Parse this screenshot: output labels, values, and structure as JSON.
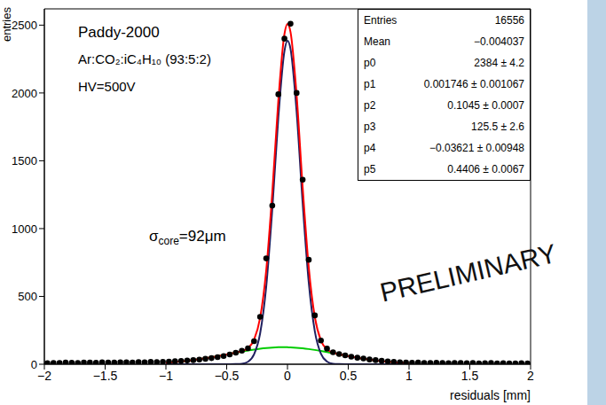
{
  "chart_data": {
    "type": "scatter",
    "x_label": "residuals [mm]",
    "y_label": "entries",
    "annotations": [
      "Paddy-2000",
      "Ar:CO₂:iC₄H₁₀ (93:5:2)",
      "HV=500V"
    ],
    "sigma_label": {
      "symbol": "σ",
      "subscript": "core",
      "text": "=92μm"
    },
    "watermark": "PRELIMINARY",
    "stats": [
      [
        "Entries",
        "16556"
      ],
      [
        "Mean",
        "−0.004037"
      ],
      [
        "p0",
        "2384 ± 4.2"
      ],
      [
        "p1",
        "0.001746 ± 0.001067"
      ],
      [
        "p2",
        "0.1045 ± 0.0007"
      ],
      [
        "p3",
        "125.5 ± 2.6"
      ],
      [
        "p4",
        "−0.03621 ± 0.00948"
      ],
      [
        "p5",
        "0.4406 ± 0.0067"
      ]
    ],
    "x": [
      -1.975,
      -1.925,
      -1.875,
      -1.825,
      -1.775,
      -1.725,
      -1.675,
      -1.625,
      -1.575,
      -1.525,
      -1.475,
      -1.425,
      -1.375,
      -1.325,
      -1.275,
      -1.225,
      -1.175,
      -1.125,
      -1.075,
      -1.025,
      -0.975,
      -0.925,
      -0.875,
      -0.825,
      -0.775,
      -0.725,
      -0.675,
      -0.625,
      -0.575,
      -0.525,
      -0.475,
      -0.425,
      -0.375,
      -0.325,
      -0.275,
      -0.225,
      -0.175,
      -0.125,
      -0.075,
      -0.025,
      0.025,
      0.075,
      0.125,
      0.175,
      0.225,
      0.275,
      0.325,
      0.375,
      0.425,
      0.475,
      0.525,
      0.575,
      0.625,
      0.675,
      0.725,
      0.775,
      0.825,
      0.875,
      0.925,
      0.975,
      1.025,
      1.075,
      1.125,
      1.175,
      1.225,
      1.275,
      1.325,
      1.375,
      1.425,
      1.475,
      1.525,
      1.575,
      1.625,
      1.675,
      1.725,
      1.775,
      1.825,
      1.875,
      1.925,
      1.975
    ],
    "values": [
      8,
      10,
      9,
      12,
      11,
      10,
      13,
      12,
      11,
      14,
      13,
      12,
      15,
      14,
      13,
      16,
      15,
      17,
      16,
      18,
      20,
      22,
      24,
      27,
      30,
      34,
      40,
      45,
      52,
      60,
      72,
      85,
      100,
      118,
      170,
      350,
      780,
      1170,
      1990,
      2400,
      2510,
      2000,
      1360,
      770,
      360,
      175,
      115,
      88,
      75,
      65,
      56,
      48,
      42,
      35,
      30,
      25,
      21,
      18,
      15,
      12,
      11,
      12,
      10,
      9,
      11,
      10,
      8,
      9,
      10,
      8,
      9,
      7,
      8,
      9,
      7,
      8,
      6,
      7,
      8,
      6
    ],
    "color": "#000000",
    "marker": "circle",
    "curves": {
      "x": [
        -1,
        -0.975,
        -0.925,
        -0.875,
        -0.825,
        -0.775,
        -0.725,
        -0.675,
        -0.625,
        -0.575,
        -0.525,
        -0.475,
        -0.425,
        -0.375,
        -0.325,
        -0.275,
        -0.225,
        -0.175,
        -0.125,
        -0.075,
        -0.025,
        0,
        0.025,
        0.075,
        0.125,
        0.175,
        0.225,
        0.275,
        0.325,
        0.375,
        0.425,
        0.475,
        0.525,
        0.575,
        0.625,
        0.675,
        0.725,
        0.775,
        0.825,
        0.875,
        0.925,
        0.975,
        1
      ],
      "series": [
        {
          "type": "line",
          "line_style": "solid",
          "color": "#00cc00",
          "values": [
            11.5,
            13.0,
            16.4,
            20.5,
            25.2,
            30.7,
            36.9,
            43.9,
            51.4,
            59.4,
            67.8,
            76.4,
            85.0,
            93.3,
            101.2,
            108.3,
            114.5,
            119.4,
            123.0,
            125.0,
            125.5,
            125.1,
            124.3,
            121.6,
            117.4,
            111.9,
            105.3,
            97.8,
            89.7,
            81.2,
            72.6,
            64.1,
            55.8,
            48.1,
            40.7,
            34.1,
            28.2,
            23.0,
            18.6,
            14.8,
            11.6,
            9.0,
            7.9
          ]
        },
        {
          "type": "line",
          "line_style": "solid",
          "color": "#202060",
          "values": [
            0,
            0,
            0,
            0,
            0,
            0,
            0,
            0,
            0,
            0,
            0,
            0,
            1,
            4,
            18,
            72,
            227,
            571,
            1143,
            1821,
            2308,
            2384,
            2325,
            1864,
            1188,
            603,
            243,
            78,
            20,
            4,
            1,
            0,
            0,
            0,
            0,
            0,
            0,
            0,
            0,
            0,
            0,
            0,
            0
          ]
        },
        {
          "type": "line",
          "line_style": "solid",
          "color": "#ff0000",
          "values": [
            11.5,
            13.0,
            16.4,
            20.5,
            25.2,
            30.7,
            36.9,
            43.9,
            51.4,
            59.4,
            67.8,
            76.4,
            86,
            97,
            119,
            180,
            342,
            690,
            1266,
            1946,
            2434,
            2509,
            2449,
            1986,
            1305,
            715,
            348,
            176,
            110,
            85,
            74,
            64.1,
            55.8,
            48.1,
            40.7,
            34.1,
            28.2,
            23.0,
            18.6,
            14.8,
            11.6,
            9.0,
            7.9
          ]
        }
      ]
    },
    "xlim": [
      -2,
      2
    ],
    "xticks": [
      {
        "value": -2,
        "label": "−2"
      },
      {
        "value": -1.5,
        "label": "−1.5"
      },
      {
        "value": -1,
        "label": "−1"
      },
      {
        "value": -0.5,
        "label": "−0.5"
      },
      0,
      0.5,
      1,
      1.5,
      2
    ],
    "ylim": [
      0,
      2620
    ],
    "yticks": [
      0,
      500,
      1000,
      1500,
      2000,
      2500
    ],
    "grid": false
  }
}
